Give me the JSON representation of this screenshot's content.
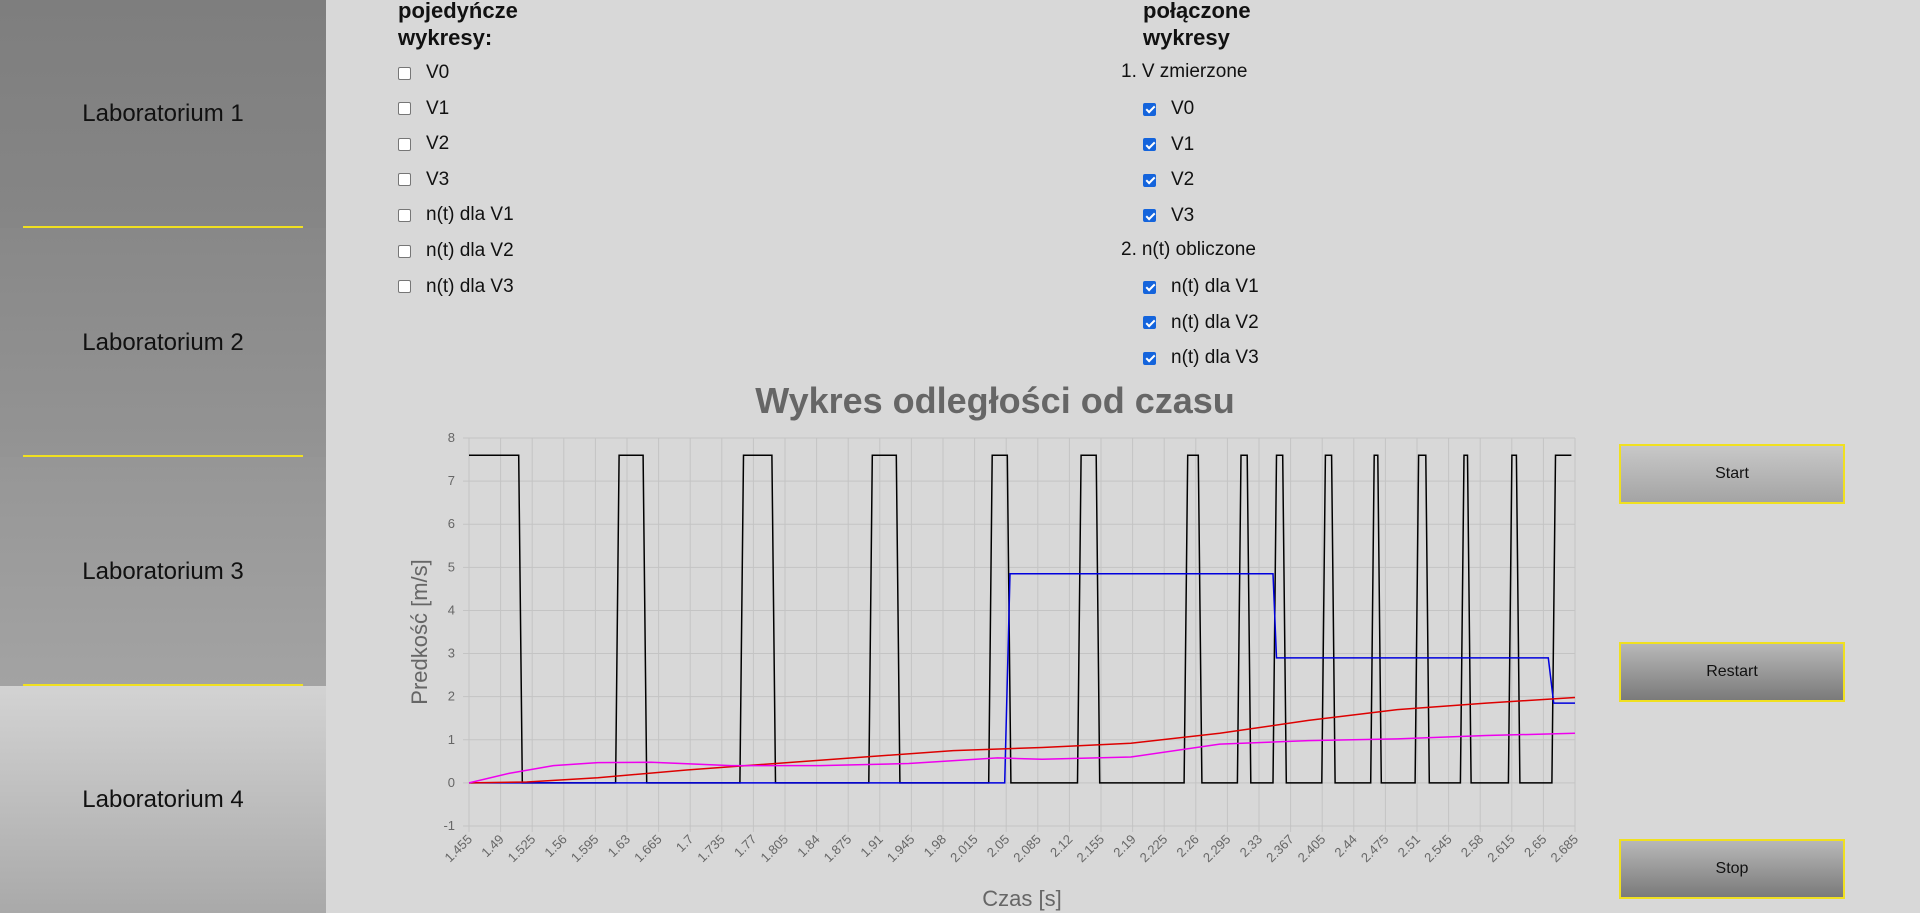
{
  "sidebar": {
    "items": [
      {
        "label": "Laboratorium 1"
      },
      {
        "label": "Laboratorium 2"
      },
      {
        "label": "Laboratorium 3"
      },
      {
        "label": "Laboratorium 4"
      }
    ]
  },
  "single_panel": {
    "title_line1": "pojedyńcze",
    "title_line2": "wykresy:",
    "items": [
      {
        "label": "V0",
        "checked": false
      },
      {
        "label": "V1",
        "checked": false
      },
      {
        "label": "V2",
        "checked": false
      },
      {
        "label": "V3",
        "checked": false
      },
      {
        "label": "n(t) dla V1",
        "checked": false
      },
      {
        "label": "n(t) dla V2",
        "checked": false
      },
      {
        "label": "n(t) dla V3",
        "checked": false
      }
    ]
  },
  "combined_panel": {
    "title_line1": "połączone",
    "title_line2": "wykresy",
    "group1": {
      "number": "1.",
      "label": "V zmierzone",
      "items": [
        {
          "label": "V0",
          "checked": true
        },
        {
          "label": "V1",
          "checked": true
        },
        {
          "label": "V2",
          "checked": true
        },
        {
          "label": "V3",
          "checked": true
        }
      ]
    },
    "group2": {
      "number": "2.",
      "label": "n(t) obliczone",
      "items": [
        {
          "label": "n(t) dla V1",
          "checked": true
        },
        {
          "label": "n(t) dla V2",
          "checked": true
        },
        {
          "label": "n(t) dla V3",
          "checked": true
        }
      ]
    }
  },
  "buttons": {
    "start": "Start",
    "restart": "Restart",
    "stop": "Stop"
  },
  "chart_data": {
    "type": "line",
    "title": "Wykres odległości od czasu",
    "xlabel": "Czas [s]",
    "ylabel": "Predkość [m/s]",
    "xlim": [
      1.455,
      2.7
    ],
    "ylim": [
      -1,
      8
    ],
    "yticks": [
      -1,
      0,
      1,
      2,
      3,
      4,
      5,
      6,
      7,
      8
    ],
    "xticks": [
      "1.455",
      "1.49",
      "1.525",
      "1.56",
      "1.595",
      "1.63",
      "1.665",
      "1.7",
      "1.735",
      "1.77",
      "1.805",
      "1.84",
      "1.875",
      "1.91",
      "1.945",
      "1.98",
      "2.015",
      "2.05",
      "2.085",
      "2.12",
      "2.155",
      "2.19",
      "2.225",
      "2.26",
      "2.295",
      "2.33",
      "2.367",
      "2.405",
      "2.44",
      "2.475",
      "2.51",
      "2.545",
      "2.58",
      "2.615",
      "2.65",
      "2.685"
    ],
    "grid": true,
    "series": [
      {
        "color": "#000000",
        "pulses": [
          [
            1.455,
            1.515
          ],
          [
            1.62,
            1.655
          ],
          [
            1.76,
            1.8
          ],
          [
            1.905,
            1.94
          ],
          [
            2.04,
            2.065
          ],
          [
            2.14,
            2.165
          ],
          [
            2.26,
            2.28
          ],
          [
            2.32,
            2.335
          ],
          [
            2.36,
            2.375
          ],
          [
            2.415,
            2.43
          ],
          [
            2.47,
            2.482
          ],
          [
            2.52,
            2.536
          ],
          [
            2.571,
            2.583
          ],
          [
            2.625,
            2.638
          ],
          [
            2.674,
            2.7
          ]
        ],
        "high": 7.6,
        "low": 0.0
      },
      {
        "color": "#0000dd",
        "x": [
          1.455,
          2.058,
          2.064,
          2.36,
          2.364,
          2.67,
          2.676,
          2.7
        ],
        "y": [
          0,
          0,
          4.85,
          4.85,
          2.9,
          2.9,
          1.85,
          1.85
        ]
      },
      {
        "color": "#dd0000",
        "x": [
          1.455,
          1.52,
          1.6,
          1.7,
          1.8,
          1.9,
          2.0,
          2.1,
          2.2,
          2.3,
          2.4,
          2.5,
          2.6,
          2.7
        ],
        "y": [
          0,
          0.02,
          0.12,
          0.3,
          0.45,
          0.6,
          0.75,
          0.82,
          0.92,
          1.15,
          1.45,
          1.7,
          1.85,
          1.98
        ]
      },
      {
        "color": "#ee00ee",
        "x": [
          1.455,
          1.5,
          1.55,
          1.6,
          1.66,
          1.75,
          1.85,
          1.95,
          2.05,
          2.1,
          2.2,
          2.3,
          2.4,
          2.5,
          2.6,
          2.7
        ],
        "y": [
          0,
          0.22,
          0.4,
          0.47,
          0.48,
          0.4,
          0.4,
          0.45,
          0.58,
          0.55,
          0.6,
          0.9,
          0.98,
          1.02,
          1.1,
          1.15
        ]
      }
    ]
  }
}
